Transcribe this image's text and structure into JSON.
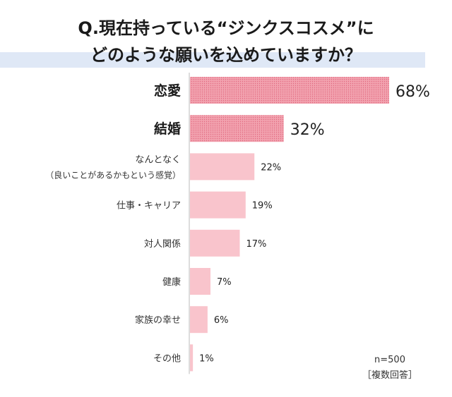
{
  "title": {
    "line1": "Q.現在持っている“ジンクスコスメ”に",
    "line2": "どのような願いを込めていますか？"
  },
  "note": {
    "sample": "n=500",
    "method": "［複数回答］"
  },
  "colors": {
    "highlight": "#f08a9c",
    "normal": "#f9c4cc",
    "axis": "#bbbbbb"
  },
  "chart_data": {
    "type": "bar",
    "orientation": "horizontal",
    "title": "Q.現在持っている“ジンクスコスメ”にどのような願いを込めていますか？",
    "unit": "%",
    "xlim": [
      0,
      68
    ],
    "categories": [
      {
        "label": "恋愛",
        "value": 68,
        "value_label": "68%",
        "highlight": true
      },
      {
        "label": "結婚",
        "value": 32,
        "value_label": "32%",
        "highlight": true
      },
      {
        "label": "なんとなく",
        "sublabel": "（良いことがあるかもという感覚）",
        "value": 22,
        "value_label": "22%",
        "highlight": false
      },
      {
        "label": "仕事・キャリア",
        "value": 19,
        "value_label": "19%",
        "highlight": false
      },
      {
        "label": "対人関係",
        "value": 17,
        "value_label": "17%",
        "highlight": false
      },
      {
        "label": "健康",
        "value": 7,
        "value_label": "7%",
        "highlight": false
      },
      {
        "label": "家族の幸せ",
        "value": 6,
        "value_label": "6%",
        "highlight": false
      },
      {
        "label": "その他",
        "value": 1,
        "value_label": "1%",
        "highlight": false
      }
    ]
  }
}
